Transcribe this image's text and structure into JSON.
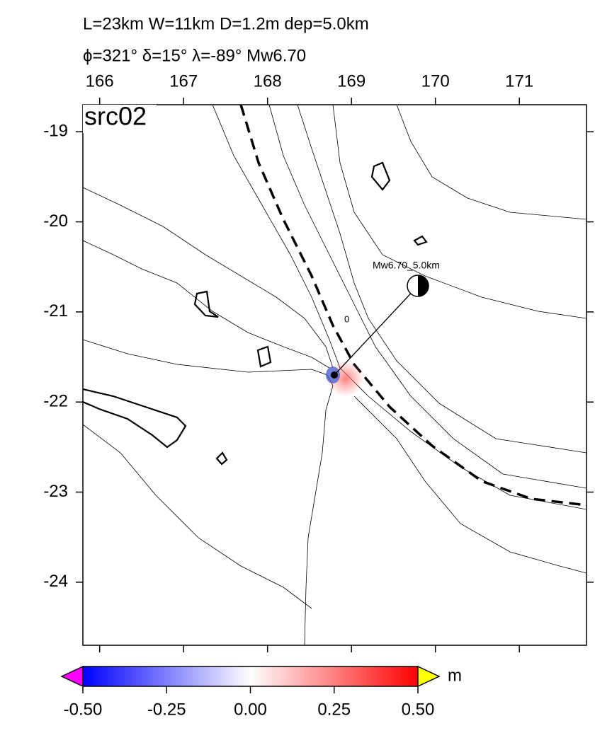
{
  "header": {
    "line1": "L=23km W=11km D=1.2m dep=5.0km",
    "line2": "ϕ=321° δ=15° λ=-89° Mw6.70"
  },
  "map": {
    "label": "src02",
    "xlim": [
      165.8,
      171.8
    ],
    "ylim": [
      -24.7,
      -18.7
    ],
    "xticks": [
      166,
      167,
      168,
      169,
      170,
      171
    ],
    "yticks": [
      -19,
      -20,
      -21,
      -22,
      -23,
      -24
    ],
    "annotation": "Mw6.70_5.0km",
    "contour_label": "0"
  },
  "colorbar": {
    "lim": [
      -0.5,
      0.5
    ],
    "ticks": [
      {
        "value": -0.5,
        "label": "-0.50"
      },
      {
        "value": -0.25,
        "label": "-0.25"
      },
      {
        "value": 0,
        "label": "0.00"
      },
      {
        "value": 0.25,
        "label": "0.25"
      },
      {
        "value": 0.5,
        "label": "0.50"
      }
    ],
    "unit": "m"
  }
}
